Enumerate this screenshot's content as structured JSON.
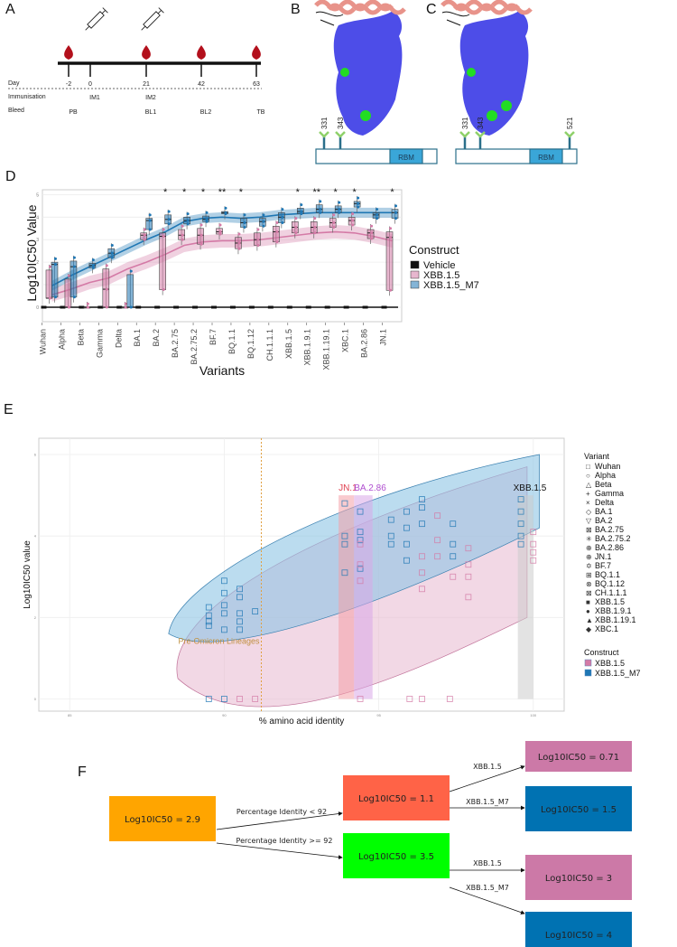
{
  "panels": {
    "A": "A",
    "B": "B",
    "C": "C",
    "D": "D",
    "E": "E",
    "F": "F"
  },
  "timeline": {
    "row_labels": [
      "Day",
      "Immunisation",
      "Bleed"
    ],
    "points": [
      {
        "day": "-2",
        "immunisation": "",
        "bleed": "PB",
        "blood_drop": true,
        "syringe": false
      },
      {
        "day": "0",
        "immunisation": "IM1",
        "bleed": "",
        "blood_drop": false,
        "syringe": true
      },
      {
        "day": "21",
        "immunisation": "IM2",
        "bleed": "BL1",
        "blood_drop": true,
        "syringe": true
      },
      {
        "day": "42",
        "immunisation": "",
        "bleed": "BL2",
        "blood_drop": true,
        "syringe": false
      },
      {
        "day": "63",
        "immunisation": "",
        "bleed": "TB",
        "blood_drop": true,
        "syringe": false
      }
    ],
    "colors": {
      "drop": "#b3101c",
      "line": "#111111"
    }
  },
  "structures": {
    "B": {
      "glycan_sites": [
        "331",
        "343"
      ],
      "domain_label": "RBM"
    },
    "C": {
      "glycan_sites": [
        "331",
        "343",
        "521"
      ],
      "domain_label": "RBM"
    },
    "colors": {
      "surface": "#4d4de8",
      "helix": "#e8938a",
      "glycan_patch": "#22dd22",
      "rbm": "#3aa6d8",
      "glycan_stem": "#2a6f8a",
      "glycan_tip": "#8fd16a"
    }
  },
  "chart_data": [
    {
      "id": "D",
      "type": "box",
      "title": "",
      "xlabel": "Variants",
      "ylabel": "Log10IC50 Value",
      "ylim": [
        0,
        5
      ],
      "yticks": [
        "0",
        "1",
        "2",
        "3",
        "4",
        "5"
      ],
      "grid": true,
      "categories": [
        "Wuhan",
        "Alpha",
        "Beta",
        "Gamma",
        "Delta",
        "BA.1",
        "BA.2",
        "BA.2.75",
        "BA.2.75.2",
        "BF.7",
        "BQ.1.1",
        "BQ.1.12",
        "CH.1.1.1",
        "XBB.1.5",
        "XBB.1.9.1",
        "XBB.1.19.1",
        "XBC.1",
        "BA.2.86",
        "JN.1"
      ],
      "significance": [
        "",
        "",
        "",
        "",
        "",
        "",
        "*",
        "*",
        "*",
        "**",
        "*",
        "",
        "",
        "*",
        "**",
        "*",
        "*",
        "",
        "*"
      ],
      "legend": {
        "title": "Construct",
        "position": "right",
        "entries": [
          "Vehicle",
          "XBB.1.5",
          "XBB.1.5_M7"
        ]
      },
      "series": [
        {
          "name": "Vehicle",
          "color": "#111111",
          "median": [
            0,
            0,
            0,
            0,
            0,
            0,
            0,
            0,
            0,
            0,
            0,
            0,
            0,
            0,
            0,
            0,
            0,
            0,
            0
          ],
          "q1": [
            0,
            0,
            0,
            0,
            0,
            0,
            0,
            0,
            0,
            0,
            0,
            0,
            0,
            0,
            0,
            0,
            0,
            0,
            0
          ],
          "q3": [
            0,
            0,
            0,
            0,
            0,
            0,
            0,
            0,
            0,
            0,
            0,
            0,
            0,
            0,
            0,
            0,
            0,
            0,
            0
          ]
        },
        {
          "name": "XBB.1.5",
          "color": "#d47aa6",
          "median": [
            0.4,
            0.0,
            0.0,
            0.8,
            0.0,
            3.2,
            3.15,
            3.2,
            3.2,
            3.35,
            2.85,
            3.0,
            3.35,
            3.55,
            3.55,
            3.75,
            3.85,
            3.3,
            3.1
          ],
          "q1": [
            0.4,
            0.0,
            0.0,
            0.0,
            0.0,
            3.0,
            0.78,
            3.0,
            2.8,
            3.25,
            2.6,
            2.75,
            2.9,
            3.3,
            3.3,
            3.55,
            3.65,
            3.05,
            0.75
          ],
          "q3": [
            1.65,
            1.25,
            0.0,
            1.7,
            0.0,
            3.3,
            3.3,
            3.45,
            3.5,
            3.5,
            3.1,
            3.3,
            3.6,
            3.8,
            3.8,
            3.95,
            4.0,
            3.45,
            3.35
          ],
          "smooth": [
            0.55,
            0.8,
            1.1,
            1.3,
            1.7,
            2.0,
            2.35,
            2.75,
            2.9,
            2.95,
            2.95,
            3.0,
            3.1,
            3.2,
            3.3,
            3.35,
            3.3,
            3.15,
            2.95
          ],
          "band": 0.3
        },
        {
          "name": "XBB.1.5_M7",
          "color": "#1f77b4",
          "median": [
            1.9,
            1.8,
            1.85,
            2.4,
            0.0,
            3.85,
            3.9,
            3.85,
            3.9,
            4.2,
            3.75,
            3.8,
            4.0,
            4.25,
            4.35,
            4.35,
            4.6,
            4.1,
            4.2
          ],
          "q1": [
            0.45,
            0.45,
            1.75,
            2.2,
            0.0,
            3.45,
            3.7,
            3.7,
            3.8,
            4.15,
            3.55,
            3.6,
            3.75,
            4.15,
            4.2,
            4.2,
            4.45,
            3.95,
            3.95
          ],
          "q3": [
            2.0,
            2.05,
            1.95,
            2.6,
            1.45,
            3.95,
            4.1,
            4.0,
            4.05,
            4.25,
            3.95,
            3.95,
            4.2,
            4.4,
            4.55,
            4.5,
            4.7,
            4.2,
            4.35
          ],
          "smooth": [
            0.95,
            1.4,
            1.8,
            2.2,
            2.6,
            3.0,
            3.35,
            3.8,
            3.95,
            4.0,
            3.95,
            4.0,
            4.1,
            4.15,
            4.2,
            4.2,
            4.2,
            4.2,
            4.2
          ],
          "band": 0.22
        }
      ]
    },
    {
      "id": "E",
      "type": "scatter",
      "title": "",
      "xlabel": "% amino acid identity",
      "ylabel": "Log10IC50 value",
      "xlim": [
        84,
        101
      ],
      "ylim": [
        -0.3,
        6.4
      ],
      "xticks": [
        "85",
        "90",
        "95",
        "100"
      ],
      "yticks": [
        "0",
        "2",
        "4",
        "6"
      ],
      "grid": true,
      "vline": {
        "x": 91.2,
        "label": "Pre-Omicron Lineages",
        "color": "#e0a040"
      },
      "highlight_bands": [
        {
          "label": "JN.1",
          "x0": 93.7,
          "x1": 94.2,
          "color": "#f4a0a8",
          "label_color": "#e04050"
        },
        {
          "label": "BA.2.86",
          "x0": 94.2,
          "x1": 94.8,
          "color": "#d8a8e8",
          "label_color": "#b050d0"
        },
        {
          "label": "XBB.1.5",
          "x0": 99.5,
          "x1": 100.0,
          "color": "#cccccc",
          "label_color": "#111111"
        }
      ],
      "legend": {
        "variant_title": "Variant",
        "variants": [
          {
            "name": "Wuhan",
            "glyph": "□"
          },
          {
            "name": "Alpha",
            "glyph": "○"
          },
          {
            "name": "Beta",
            "glyph": "△"
          },
          {
            "name": "Gamma",
            "glyph": "+"
          },
          {
            "name": "Delta",
            "glyph": "×"
          },
          {
            "name": "BA.1",
            "glyph": "◇"
          },
          {
            "name": "BA.2",
            "glyph": "▽"
          },
          {
            "name": "BA.2.75",
            "glyph": "⊠"
          },
          {
            "name": "BA.2.75.2",
            "glyph": "✳"
          },
          {
            "name": "BA.2.86",
            "glyph": "⊕"
          },
          {
            "name": "JN.1",
            "glyph": "⊕"
          },
          {
            "name": "BF.7",
            "glyph": "✡"
          },
          {
            "name": "BQ.1.1",
            "glyph": "⊞"
          },
          {
            "name": "BQ.1.12",
            "glyph": "⊗"
          },
          {
            "name": "CH.1.1.1",
            "glyph": "⊠"
          },
          {
            "name": "XBB.1.5",
            "glyph": "■"
          },
          {
            "name": "XBB.1.9.1",
            "glyph": "●"
          },
          {
            "name": "XBB.1.19.1",
            "glyph": "▲"
          },
          {
            "name": "XBC.1",
            "glyph": "◆"
          }
        ],
        "construct_title": "Construct",
        "constructs": [
          {
            "name": "XBB.1.5",
            "color": "#d47aa6"
          },
          {
            "name": "XBB.1.5_M7",
            "color": "#1f77b4"
          }
        ]
      },
      "ellipses": [
        {
          "construct": "XBB.1.5",
          "color": "#e8b8d0"
        },
        {
          "construct": "XBB.1.5_M7",
          "color": "#8ec4e4"
        }
      ],
      "series": [
        {
          "name": "XBB.1.5_M7",
          "color": "#1f77b4",
          "points": [
            [
              89.5,
              2.25
            ],
            [
              89.5,
              2.05
            ],
            [
              89.5,
              1.9
            ],
            [
              89.5,
              1.8
            ],
            [
              90.0,
              2.9
            ],
            [
              90.0,
              2.6
            ],
            [
              90.0,
              2.3
            ],
            [
              90.0,
              2.1
            ],
            [
              90.0,
              1.7
            ],
            [
              90.5,
              2.7
            ],
            [
              90.5,
              2.5
            ],
            [
              90.5,
              2.1
            ],
            [
              90.5,
              1.9
            ],
            [
              90.5,
              1.7
            ],
            [
              91.0,
              2.15
            ],
            [
              93.9,
              4.8
            ],
            [
              93.9,
              4.0
            ],
            [
              93.9,
              3.8
            ],
            [
              93.9,
              3.1
            ],
            [
              94.4,
              4.6
            ],
            [
              94.4,
              4.1
            ],
            [
              94.4,
              3.9
            ],
            [
              94.4,
              3.2
            ],
            [
              95.4,
              4.4
            ],
            [
              95.4,
              4.0
            ],
            [
              95.4,
              3.8
            ],
            [
              95.9,
              4.6
            ],
            [
              95.9,
              4.2
            ],
            [
              95.9,
              3.8
            ],
            [
              95.9,
              3.4
            ],
            [
              96.4,
              4.9
            ],
            [
              96.4,
              4.7
            ],
            [
              96.4,
              4.3
            ],
            [
              97.4,
              4.3
            ],
            [
              97.4,
              3.8
            ],
            [
              97.4,
              3.5
            ],
            [
              99.6,
              4.9
            ],
            [
              99.6,
              4.6
            ],
            [
              99.6,
              4.3
            ],
            [
              99.6,
              4.0
            ],
            [
              99.6,
              3.8
            ],
            [
              89.5,
              0.0
            ],
            [
              90.0,
              0.0
            ]
          ]
        },
        {
          "name": "XBB.1.5",
          "color": "#d47aa6",
          "points": [
            [
              90.5,
              0.0
            ],
            [
              91.0,
              0.0
            ],
            [
              94.4,
              3.8
            ],
            [
              94.4,
              3.3
            ],
            [
              94.4,
              2.9
            ],
            [
              94.4,
              0.0
            ],
            [
              96.4,
              3.5
            ],
            [
              96.4,
              3.1
            ],
            [
              96.4,
              2.7
            ],
            [
              96.9,
              4.5
            ],
            [
              96.9,
              3.9
            ],
            [
              96.9,
              3.5
            ],
            [
              97.4,
              3.0
            ],
            [
              97.9,
              3.7
            ],
            [
              97.9,
              3.3
            ],
            [
              97.9,
              3.0
            ],
            [
              97.9,
              2.5
            ],
            [
              96.0,
              0.0
            ],
            [
              96.4,
              0.0
            ],
            [
              97.3,
              0.0
            ],
            [
              100.0,
              4.1
            ],
            [
              100.0,
              3.8
            ],
            [
              100.0,
              3.6
            ],
            [
              100.0,
              3.4
            ]
          ]
        }
      ]
    }
  ],
  "decision_tree": {
    "root": {
      "label": "Log10IC50 = 2.9",
      "color": "#ffa500"
    },
    "branches": [
      {
        "condition": "Percentage Identity < 92",
        "node": {
          "label": "Log10IC50 = 1.1",
          "color": "#ff6347"
        },
        "children": [
          {
            "edge": "XBB.1.5",
            "label": "Log10IC50 = 0.71",
            "color": "#cc79a7"
          },
          {
            "edge": "XBB.1.5_M7",
            "label": "Log10IC50 = 1.5",
            "color": "#0072b2"
          }
        ]
      },
      {
        "condition": "Percentage Identity >= 92",
        "node": {
          "label": "Log10IC50 = 3.5",
          "color": "#00ff00"
        },
        "children": [
          {
            "edge": "XBB.1.5",
            "label": "Log10IC50 = 3",
            "color": "#cc79a7"
          },
          {
            "edge": "XBB.1.5_M7",
            "label": "Log10IC50 = 4",
            "color": "#0072b2"
          }
        ]
      }
    ]
  }
}
